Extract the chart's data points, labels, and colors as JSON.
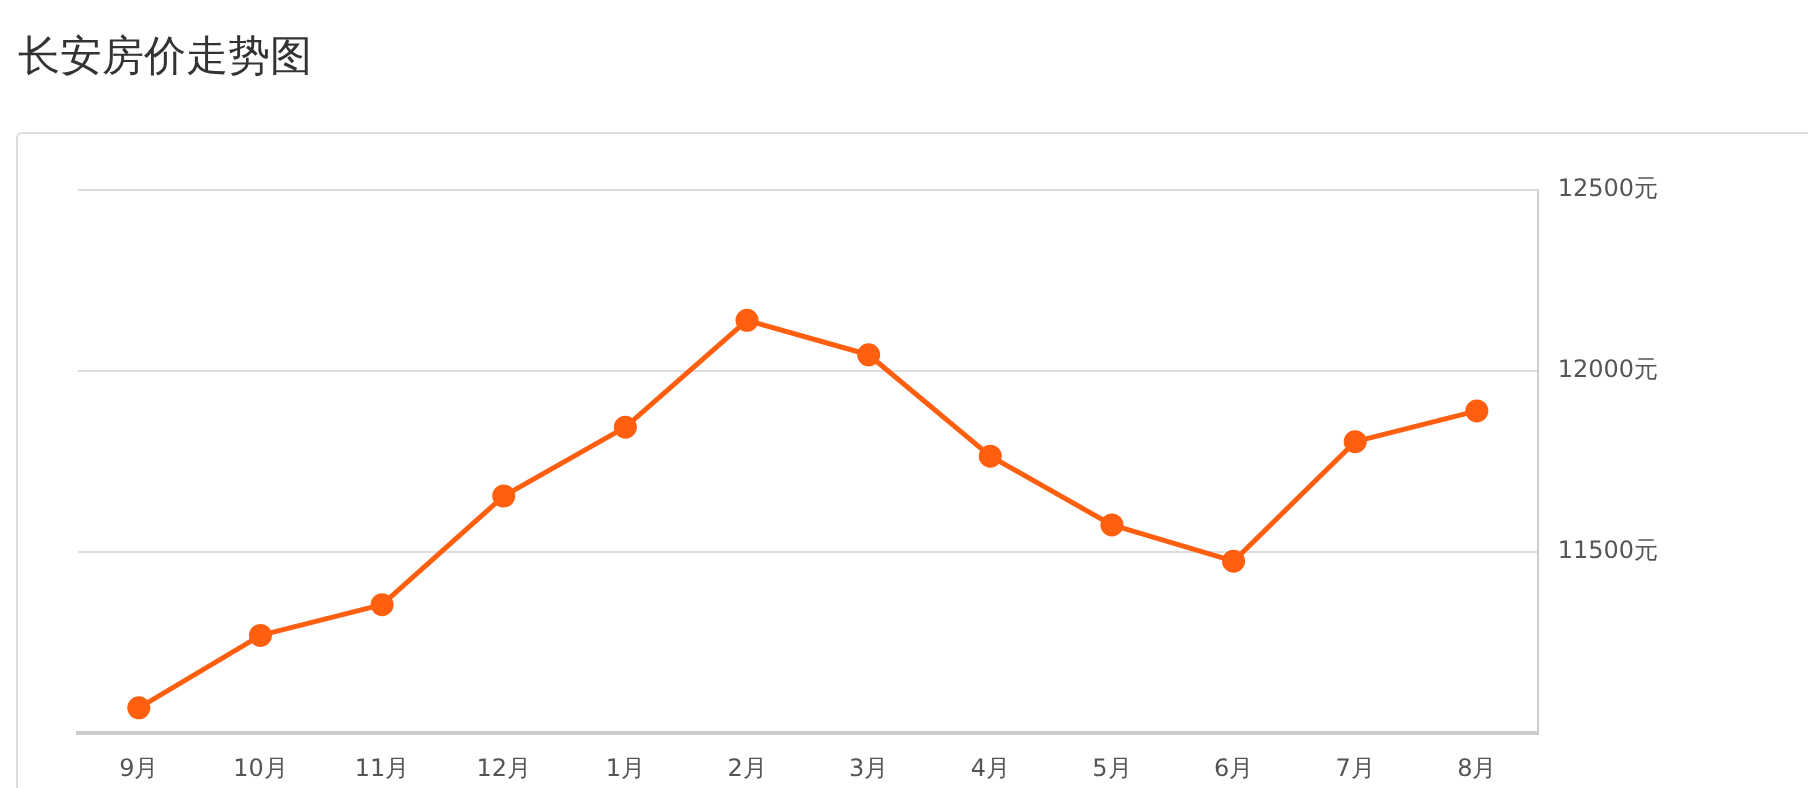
{
  "chart_data": {
    "type": "line",
    "title": "长安房价走势图",
    "categories": [
      "9月",
      "10月",
      "11月",
      "12月",
      "1月",
      "2月",
      "3月",
      "4月",
      "5月",
      "6月",
      "7月",
      "8月"
    ],
    "series": [
      {
        "color": "#ff5f0f",
        "values": [
          11070,
          11270,
          11355,
          11655,
          11845,
          12140,
          12045,
          11765,
          11575,
          11475,
          11805,
          11890
        ]
      }
    ],
    "ylim": [
      11000,
      12500
    ],
    "yticks": [
      {
        "value": 11000,
        "label": null
      },
      {
        "value": 11500,
        "label": "11500元"
      },
      {
        "value": 12000,
        "label": "12000元"
      },
      {
        "value": 12500,
        "label": "12500元"
      }
    ],
    "grid": "y",
    "legend": false,
    "marker": "circle",
    "line_style": "solid"
  }
}
